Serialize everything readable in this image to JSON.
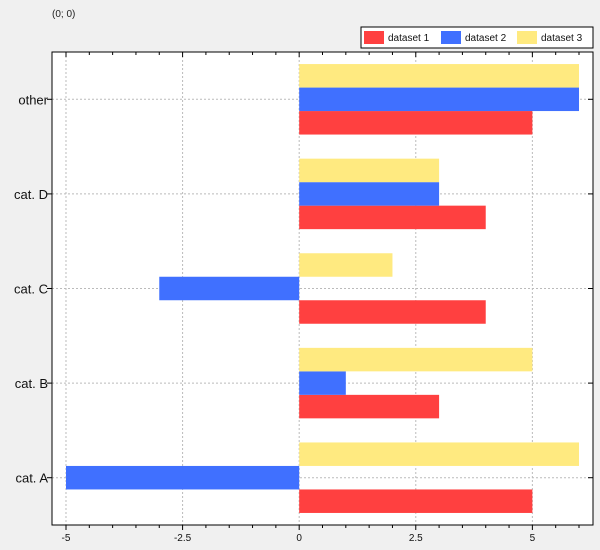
{
  "coord_readout": "(0; 0)",
  "chart_data": {
    "type": "bar",
    "orientation": "horizontal",
    "categories": [
      "cat. A",
      "cat. B",
      "cat. C",
      "cat. D",
      "other"
    ],
    "series": [
      {
        "name": "dataset 1",
        "color": "#ff4040",
        "values": [
          5,
          3,
          4,
          4,
          5
        ]
      },
      {
        "name": "dataset 2",
        "color": "#4070ff",
        "values": [
          -5,
          1,
          -3,
          3,
          6
        ]
      },
      {
        "name": "dataset 3",
        "color": "#ffea80",
        "values": [
          6,
          5,
          2,
          3,
          6
        ]
      }
    ],
    "xlim": [
      -5.3,
      6.3
    ],
    "xticks": [
      -5,
      -2.5,
      0,
      2.5,
      5
    ],
    "xtick_labels": [
      "-5",
      "-2.5",
      "0",
      "2.5",
      "5"
    ],
    "grid": true,
    "legend_position": "top-right"
  }
}
